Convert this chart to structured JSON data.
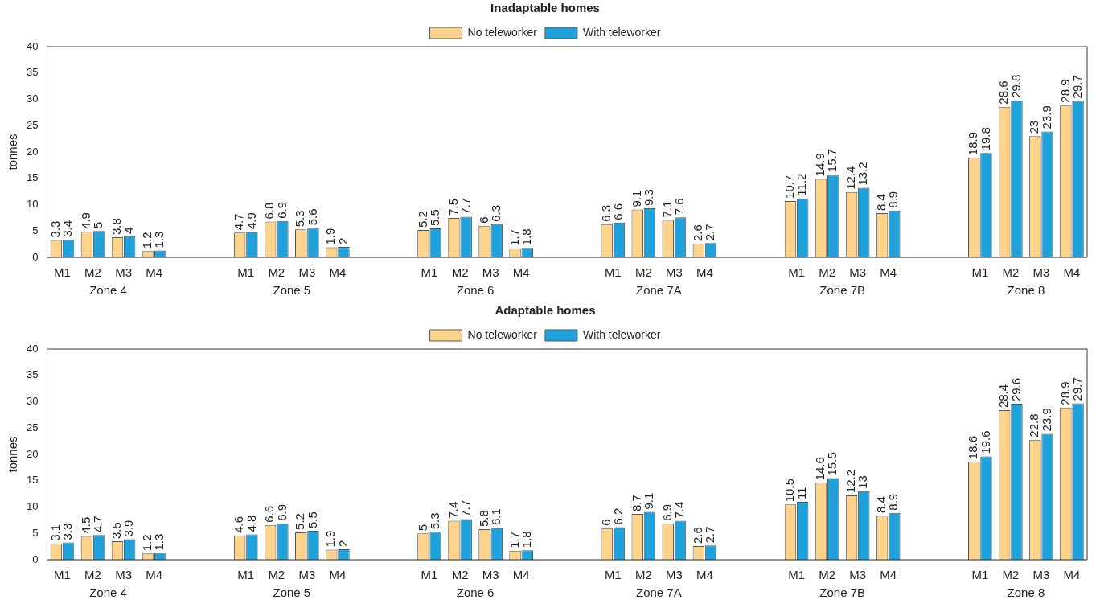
{
  "chart_data": [
    {
      "type": "bar",
      "title": "Inadaptable homes",
      "ylabel": "tonnes",
      "categories": [
        "M1",
        "M2",
        "M3",
        "M4",
        null,
        null,
        "M1",
        "M2",
        "M3",
        "M4",
        null,
        null,
        "M1",
        "M2",
        "M3",
        "M4",
        null,
        null,
        "M1",
        "M2",
        "M3",
        "M4",
        null,
        null,
        "M1",
        "M2",
        "M3",
        "M4",
        null,
        null,
        "M1",
        "M2",
        "M3",
        "M4"
      ],
      "series": [
        {
          "name": "No teleworker",
          "color": "#fdd38c",
          "values": [
            3.3,
            4.9,
            3.8,
            1.2,
            null,
            null,
            4.7,
            6.8,
            5.3,
            1.9,
            null,
            null,
            5.2,
            7.5,
            6,
            1.7,
            null,
            null,
            6.3,
            9.1,
            7.1,
            2.6,
            null,
            null,
            10.7,
            14.9,
            12.4,
            8.4,
            null,
            null,
            18.9,
            28.6,
            23,
            28.9
          ]
        },
        {
          "name": "With teleworker",
          "color": "#1fa2dc",
          "values": [
            3.4,
            5,
            4,
            1.3,
            null,
            null,
            4.9,
            6.9,
            5.6,
            2,
            null,
            null,
            5.5,
            7.7,
            6.3,
            1.8,
            null,
            null,
            6.6,
            9.3,
            7.6,
            2.7,
            null,
            null,
            11.2,
            15.7,
            13.2,
            8.9,
            null,
            null,
            19.8,
            29.8,
            23.9,
            29.7
          ]
        }
      ],
      "ylim": [
        0,
        40
      ],
      "yticks": [
        0,
        5,
        10,
        15,
        20,
        25,
        30,
        35,
        40
      ],
      "grid": false,
      "legend": "top",
      "data_labels": true,
      "annotations": [
        "Zone 4",
        "Zone 5",
        "Zone 6",
        "Zone 7A",
        "Zone 7B",
        "Zone 8"
      ]
    },
    {
      "type": "bar",
      "title": "Adaptable homes",
      "ylabel": "tonnes",
      "categories": [
        "M1",
        "M2",
        "M3",
        "M4",
        null,
        null,
        "M1",
        "M2",
        "M3",
        "M4",
        null,
        null,
        "M1",
        "M2",
        "M3",
        "M4",
        null,
        null,
        "M1",
        "M2",
        "M3",
        "M4",
        null,
        null,
        "M1",
        "M2",
        "M3",
        "M4",
        null,
        null,
        "M1",
        "M2",
        "M3",
        "M4"
      ],
      "series": [
        {
          "name": "No teleworker",
          "color": "#fdd38c",
          "values": [
            3.1,
            4.5,
            3.5,
            1.2,
            null,
            null,
            4.6,
            6.6,
            5.2,
            1.9,
            null,
            null,
            5,
            7.4,
            5.8,
            1.7,
            null,
            null,
            6,
            8.7,
            6.9,
            2.6,
            null,
            null,
            10.5,
            14.6,
            12.2,
            8.4,
            null,
            null,
            18.6,
            28.4,
            22.8,
            28.9
          ]
        },
        {
          "name": "With teleworker",
          "color": "#1fa2dc",
          "values": [
            3.3,
            4.7,
            3.9,
            1.3,
            null,
            null,
            4.8,
            6.9,
            5.5,
            2,
            null,
            null,
            5.3,
            7.7,
            6.1,
            1.8,
            null,
            null,
            6.2,
            9.1,
            7.4,
            2.7,
            null,
            null,
            11,
            15.5,
            13,
            8.9,
            null,
            null,
            19.6,
            29.6,
            23.9,
            29.7
          ]
        }
      ],
      "ylim": [
        0,
        40
      ],
      "yticks": [
        0,
        5,
        10,
        15,
        20,
        25,
        30,
        35,
        40
      ],
      "grid": false,
      "legend": "top",
      "data_labels": true,
      "annotations": [
        "Zone 4",
        "Zone 5",
        "Zone 6",
        "Zone 7A",
        "Zone 7B",
        "Zone 8"
      ]
    }
  ]
}
